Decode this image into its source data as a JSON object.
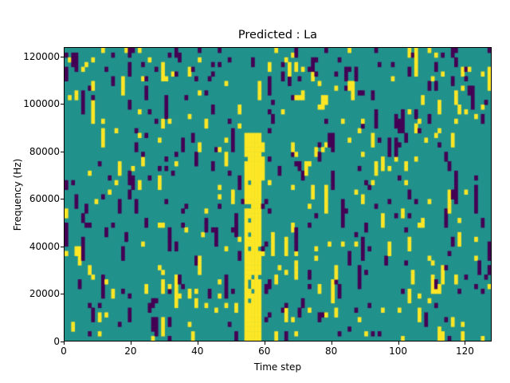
{
  "chart_data": {
    "type": "heatmap",
    "title": "Predicted : La",
    "xlabel": "Time step",
    "ylabel": "Frequency (Hz)",
    "x_ticks": [
      0,
      20,
      40,
      60,
      80,
      100,
      120
    ],
    "y_ticks": [
      0,
      20000,
      40000,
      60000,
      80000,
      100000,
      120000
    ],
    "xlim": [
      0,
      128
    ],
    "ylim": [
      0,
      124000
    ],
    "grid": {
      "cols": 128,
      "rows": 62
    },
    "colors": {
      "background": "#21918c",
      "high": "#fde725",
      "low": "#440154",
      "frame": "#000000",
      "figure_bg": "#ffffff"
    },
    "noise": {
      "seed": 42,
      "p_yellow": 0.03,
      "p_purple": 0.03,
      "run_continue": 0.45
    },
    "top_rows_boost": {
      "row_start": 55,
      "p_extra": 0.045
    },
    "band": {
      "col_start": 54,
      "col_end": 58,
      "row_start": 0,
      "row_end": 43,
      "fill_prob": 0.92
    },
    "band_edge_purple": {
      "cols": [
        59,
        60
      ],
      "row_start": 5,
      "row_end": 40,
      "prob": 0.14
    },
    "legend": "none",
    "grid_lines": false
  }
}
